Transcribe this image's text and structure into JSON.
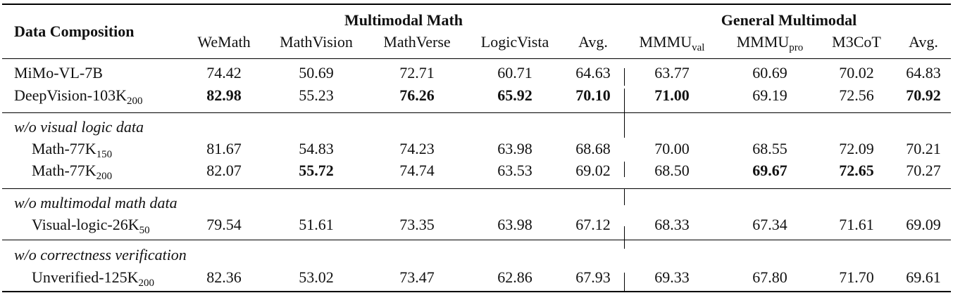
{
  "header": {
    "data_composition": "Data Composition",
    "group_math": "Multimodal Math",
    "group_general": "General Multimodal",
    "columns": [
      {
        "main": "WeMath",
        "sub": ""
      },
      {
        "main": "MathVision",
        "sub": ""
      },
      {
        "main": "MathVerse",
        "sub": ""
      },
      {
        "main": "LogicVista",
        "sub": ""
      },
      {
        "main": "Avg.",
        "sub": ""
      },
      {
        "main": "MMMU",
        "sub": "val"
      },
      {
        "main": "MMMU",
        "sub": "pro"
      },
      {
        "main": "M3CoT",
        "sub": ""
      },
      {
        "main": "Avg.",
        "sub": ""
      }
    ]
  },
  "sections": [
    {
      "title": "",
      "rows": [
        {
          "name": "MiMo-VL-7B",
          "name_sub": "",
          "values": [
            "74.42",
            "50.69",
            "72.71",
            "60.71",
            "64.63",
            "63.77",
            "60.69",
            "70.02",
            "64.83"
          ],
          "bold": []
        },
        {
          "name": "DeepVision-103K",
          "name_sub": "200",
          "values": [
            "82.98",
            "55.23",
            "76.26",
            "65.92",
            "70.10",
            "71.00",
            "69.19",
            "72.56",
            "70.92"
          ],
          "bold": [
            0,
            2,
            3,
            4,
            5,
            8
          ]
        }
      ]
    },
    {
      "title": "w/o visual logic data",
      "rows": [
        {
          "name": "Math-77K",
          "name_sub": "150",
          "values": [
            "81.67",
            "54.83",
            "74.23",
            "63.98",
            "68.68",
            "70.00",
            "68.55",
            "72.09",
            "70.21"
          ],
          "bold": []
        },
        {
          "name": "Math-77K",
          "name_sub": "200",
          "values": [
            "82.07",
            "55.72",
            "74.74",
            "63.53",
            "69.02",
            "68.50",
            "69.67",
            "72.65",
            "70.27"
          ],
          "bold": [
            1,
            6,
            7
          ]
        }
      ]
    },
    {
      "title": "w/o multimodal math data",
      "rows": [
        {
          "name": "Visual-logic-26K",
          "name_sub": "50",
          "values": [
            "79.54",
            "51.61",
            "73.35",
            "63.98",
            "67.12",
            "68.33",
            "67.34",
            "71.61",
            "69.09"
          ],
          "bold": []
        }
      ]
    },
    {
      "title": "w/o correctness verification",
      "rows": [
        {
          "name": "Unverified-125K",
          "name_sub": "200",
          "values": [
            "82.36",
            "53.02",
            "73.47",
            "62.86",
            "67.93",
            "69.33",
            "67.80",
            "71.70",
            "69.61"
          ],
          "bold": []
        }
      ]
    }
  ]
}
